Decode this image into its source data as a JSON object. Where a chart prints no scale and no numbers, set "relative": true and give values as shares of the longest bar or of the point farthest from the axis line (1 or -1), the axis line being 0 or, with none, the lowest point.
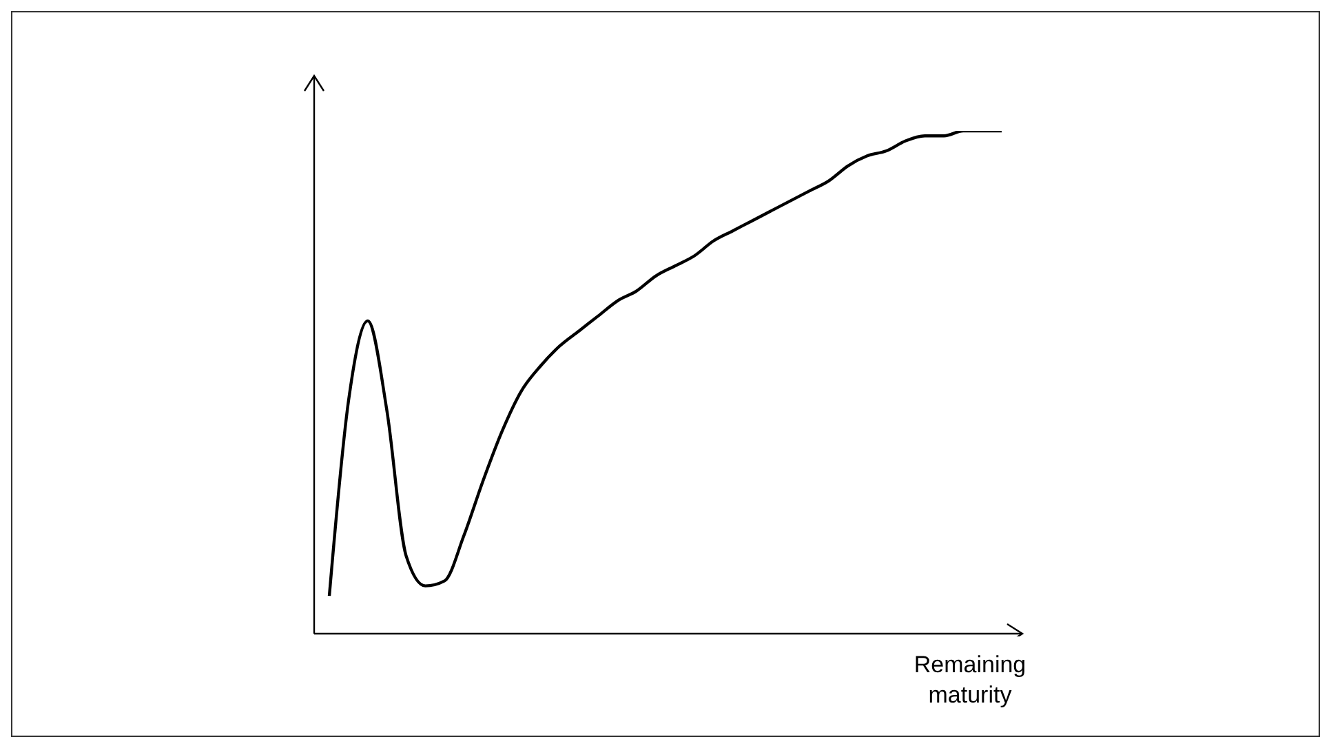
{
  "chart_data": {
    "type": "line",
    "xlabel": "Remaining maturity",
    "relative": true,
    "color": "#000000",
    "categories": [
      null,
      null,
      null,
      null,
      null,
      null,
      null,
      null,
      null,
      null,
      null,
      null,
      null,
      null,
      null,
      null,
      null,
      null,
      null,
      null,
      null,
      null,
      null,
      null,
      null,
      null,
      null,
      null,
      null,
      null,
      null,
      null,
      null,
      null,
      null,
      null
    ],
    "values": [
      0.07,
      0.46,
      0.62,
      0.44,
      0.15,
      0.09,
      0.1,
      0.19,
      0.3,
      0.4,
      0.48,
      0.53,
      0.57,
      0.6,
      0.63,
      0.66,
      0.68,
      0.71,
      0.73,
      0.75,
      0.78,
      0.8,
      0.82,
      0.84,
      0.86,
      0.88,
      0.9,
      0.93,
      0.95,
      0.96,
      0.98,
      0.99,
      0.99,
      1.0,
      1.0,
      1.0
    ]
  }
}
